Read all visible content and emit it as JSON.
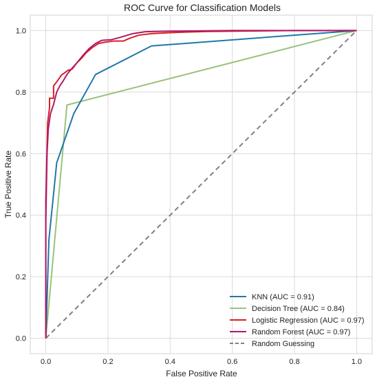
{
  "chart_data": {
    "type": "line",
    "title": "ROC Curve for Classification Models",
    "xlabel": "False Positive Rate",
    "ylabel": "True Positive Rate",
    "xlim": [
      -0.05,
      1.05
    ],
    "ylim": [
      -0.05,
      1.05
    ],
    "xticks": [
      0.0,
      0.2,
      0.4,
      0.6,
      0.8,
      1.0
    ],
    "yticks": [
      0.0,
      0.2,
      0.4,
      0.6,
      0.8,
      1.0
    ],
    "xtick_labels": [
      "0.0",
      "0.2",
      "0.4",
      "0.6",
      "0.8",
      "1.0"
    ],
    "ytick_labels": [
      "0.0",
      "0.2",
      "0.4",
      "0.6",
      "0.8",
      "1.0"
    ],
    "grid": true,
    "legend_position": "lower-right",
    "series": [
      {
        "name": "KNN (AUC = 0.91)",
        "color": "#1f77a8",
        "dash": "solid",
        "points": [
          [
            0.0,
            0.0
          ],
          [
            0.01,
            0.32
          ],
          [
            0.035,
            0.57
          ],
          [
            0.09,
            0.73
          ],
          [
            0.16,
            0.857
          ],
          [
            0.34,
            0.95
          ],
          [
            1.0,
            1.0
          ]
        ]
      },
      {
        "name": "Decision Tree (AUC = 0.84)",
        "color": "#98c379",
        "dash": "solid",
        "points": [
          [
            0.0,
            0.0
          ],
          [
            0.068,
            0.758
          ],
          [
            1.0,
            1.0
          ]
        ]
      },
      {
        "name": "Logistic Regression (AUC = 0.97)",
        "color": "#d62020",
        "dash": "solid",
        "points": [
          [
            0.0,
            0.0
          ],
          [
            0.0,
            0.45
          ],
          [
            0.004,
            0.62
          ],
          [
            0.006,
            0.7
          ],
          [
            0.012,
            0.75
          ],
          [
            0.012,
            0.78
          ],
          [
            0.025,
            0.78
          ],
          [
            0.025,
            0.82
          ],
          [
            0.04,
            0.84
          ],
          [
            0.05,
            0.855
          ],
          [
            0.06,
            0.862
          ],
          [
            0.07,
            0.87
          ],
          [
            0.085,
            0.875
          ],
          [
            0.1,
            0.895
          ],
          [
            0.115,
            0.91
          ],
          [
            0.13,
            0.928
          ],
          [
            0.15,
            0.945
          ],
          [
            0.17,
            0.958
          ],
          [
            0.19,
            0.962
          ],
          [
            0.22,
            0.966
          ],
          [
            0.25,
            0.966
          ],
          [
            0.27,
            0.975
          ],
          [
            0.3,
            0.985
          ],
          [
            0.34,
            0.99
          ],
          [
            0.4,
            0.993
          ],
          [
            0.45,
            0.995
          ],
          [
            0.52,
            0.997
          ],
          [
            0.62,
            0.998
          ],
          [
            0.8,
            1.0
          ],
          [
            1.0,
            1.0
          ]
        ]
      },
      {
        "name": "Random Forest (AUC = 0.97)",
        "color": "#b0186a",
        "dash": "solid",
        "points": [
          [
            0.0,
            0.0
          ],
          [
            0.0,
            0.38
          ],
          [
            0.004,
            0.6
          ],
          [
            0.008,
            0.68
          ],
          [
            0.015,
            0.73
          ],
          [
            0.025,
            0.76
          ],
          [
            0.035,
            0.8
          ],
          [
            0.045,
            0.82
          ],
          [
            0.055,
            0.835
          ],
          [
            0.07,
            0.86
          ],
          [
            0.085,
            0.878
          ],
          [
            0.1,
            0.895
          ],
          [
            0.12,
            0.92
          ],
          [
            0.14,
            0.942
          ],
          [
            0.16,
            0.958
          ],
          [
            0.18,
            0.968
          ],
          [
            0.21,
            0.97
          ],
          [
            0.24,
            0.978
          ],
          [
            0.28,
            0.99
          ],
          [
            0.32,
            0.996
          ],
          [
            0.4,
            0.998
          ],
          [
            0.6,
            1.0
          ],
          [
            1.0,
            1.0
          ]
        ]
      },
      {
        "name": "Random Guessing",
        "color": "#808080",
        "dash": "dashed",
        "points": [
          [
            0.0,
            0.0
          ],
          [
            1.0,
            1.0
          ]
        ]
      }
    ]
  }
}
